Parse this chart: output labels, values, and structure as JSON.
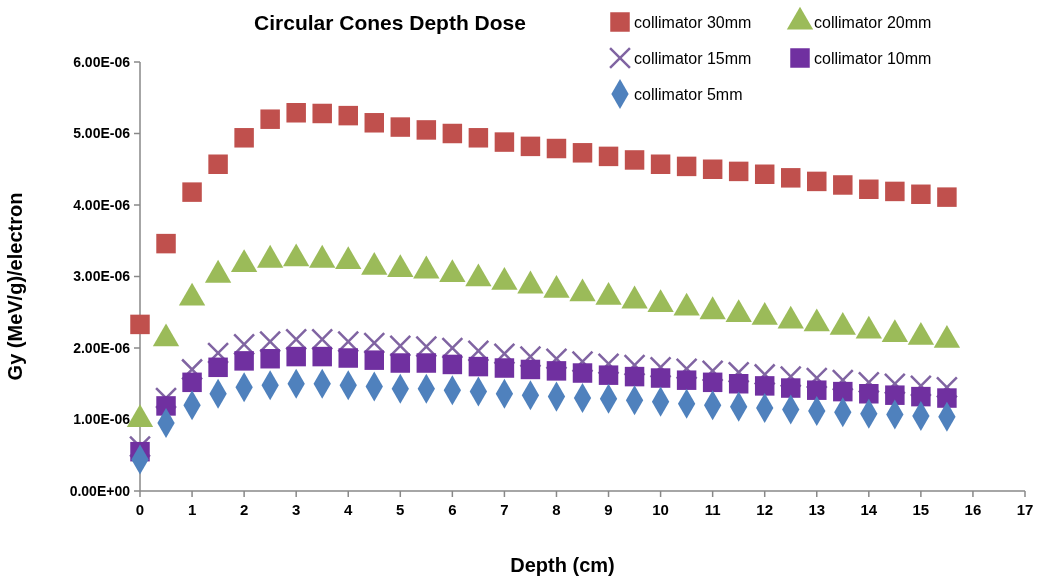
{
  "chart_data": {
    "type": "scatter",
    "title": "Circular Cones Depth Dose",
    "xlabel": "Depth (cm)",
    "ylabel": "Gy (MeV/g)/electron",
    "x": [
      0,
      0.5,
      1,
      1.5,
      2,
      2.5,
      3,
      3.5,
      4,
      4.5,
      5,
      5.5,
      6,
      6.5,
      7,
      7.5,
      8,
      8.5,
      9,
      9.5,
      10,
      10.5,
      11,
      11.5,
      12,
      12.5,
      13,
      13.5,
      14,
      14.5,
      15,
      15.5
    ],
    "xlim": [
      0,
      17
    ],
    "xticks": [
      0,
      1,
      2,
      3,
      4,
      5,
      6,
      7,
      8,
      9,
      10,
      11,
      12,
      13,
      14,
      15,
      16,
      17
    ],
    "ylim": [
      0,
      6e-06
    ],
    "yticks": [
      {
        "value": 0,
        "label": "0.00E+00"
      },
      {
        "value": 1e-06,
        "label": "1.00E-06"
      },
      {
        "value": 2e-06,
        "label": "2.00E-06"
      },
      {
        "value": 3e-06,
        "label": "3.00E-06"
      },
      {
        "value": 4e-06,
        "label": "4.00E-06"
      },
      {
        "value": 5e-06,
        "label": "5.00E-06"
      },
      {
        "value": 6e-06,
        "label": "6.00E-06"
      }
    ],
    "grid": false,
    "legend": "top right",
    "series": [
      {
        "name": "collimator 30mm",
        "color": "#c0504d",
        "marker": "square",
        "values": [
          2.33e-06,
          3.46e-06,
          4.18e-06,
          4.57e-06,
          4.94e-06,
          5.2e-06,
          5.29e-06,
          5.28e-06,
          5.25e-06,
          5.15e-06,
          5.09e-06,
          5.05e-06,
          5e-06,
          4.94e-06,
          4.88e-06,
          4.82e-06,
          4.79e-06,
          4.73e-06,
          4.68e-06,
          4.63e-06,
          4.57e-06,
          4.54e-06,
          4.5e-06,
          4.47e-06,
          4.43e-06,
          4.38e-06,
          4.33e-06,
          4.28e-06,
          4.22e-06,
          4.19e-06,
          4.15e-06,
          4.11e-06
        ]
      },
      {
        "name": "collimator 20mm",
        "color": "#9bbb59",
        "marker": "triangle",
        "values": [
          1e-06,
          2.13e-06,
          2.7e-06,
          3.02e-06,
          3.17e-06,
          3.23e-06,
          3.25e-06,
          3.23e-06,
          3.21e-06,
          3.13e-06,
          3.1e-06,
          3.08e-06,
          3.03e-06,
          2.97e-06,
          2.92e-06,
          2.87e-06,
          2.81e-06,
          2.76e-06,
          2.71e-06,
          2.66e-06,
          2.61e-06,
          2.56e-06,
          2.51e-06,
          2.47e-06,
          2.43e-06,
          2.38e-06,
          2.34e-06,
          2.29e-06,
          2.24e-06,
          2.19e-06,
          2.15e-06,
          2.11e-06
        ]
      },
      {
        "name": "collimator 15mm",
        "color": "#8064a2",
        "marker": "cross",
        "values": [
          6.2e-07,
          1.3e-06,
          1.7e-06,
          1.93e-06,
          2.05e-06,
          2.09e-06,
          2.12e-06,
          2.12e-06,
          2.09e-06,
          2.07e-06,
          2.03e-06,
          2.02e-06,
          2e-06,
          1.96e-06,
          1.92e-06,
          1.88e-06,
          1.85e-06,
          1.81e-06,
          1.78e-06,
          1.76e-06,
          1.73e-06,
          1.71e-06,
          1.68e-06,
          1.66e-06,
          1.63e-06,
          1.6e-06,
          1.58e-06,
          1.55e-06,
          1.52e-06,
          1.5e-06,
          1.47e-06,
          1.45e-06
        ]
      },
      {
        "name": "collimator 10mm",
        "color": "#7030a0",
        "marker": "square",
        "values": [
          5.5e-07,
          1.19e-06,
          1.52e-06,
          1.73e-06,
          1.82e-06,
          1.85e-06,
          1.88e-06,
          1.88e-06,
          1.86e-06,
          1.83e-06,
          1.79e-06,
          1.79e-06,
          1.77e-06,
          1.74e-06,
          1.72e-06,
          1.7e-06,
          1.68e-06,
          1.65e-06,
          1.62e-06,
          1.6e-06,
          1.58e-06,
          1.55e-06,
          1.52e-06,
          1.5e-06,
          1.47e-06,
          1.44e-06,
          1.41e-06,
          1.39e-06,
          1.36e-06,
          1.34e-06,
          1.32e-06,
          1.3e-06
        ]
      },
      {
        "name": "collimator 5mm",
        "color": "#4f81bd",
        "marker": "diamond",
        "values": [
          4.4e-07,
          9.5e-07,
          1.2e-06,
          1.36e-06,
          1.45e-06,
          1.48e-06,
          1.5e-06,
          1.5e-06,
          1.48e-06,
          1.46e-06,
          1.43e-06,
          1.43e-06,
          1.41e-06,
          1.39e-06,
          1.36e-06,
          1.34e-06,
          1.32e-06,
          1.3e-06,
          1.29e-06,
          1.27e-06,
          1.25e-06,
          1.22e-06,
          1.2e-06,
          1.18e-06,
          1.16e-06,
          1.14e-06,
          1.12e-06,
          1.1e-06,
          1.08e-06,
          1.07e-06,
          1.05e-06,
          1.04e-06
        ]
      }
    ]
  }
}
